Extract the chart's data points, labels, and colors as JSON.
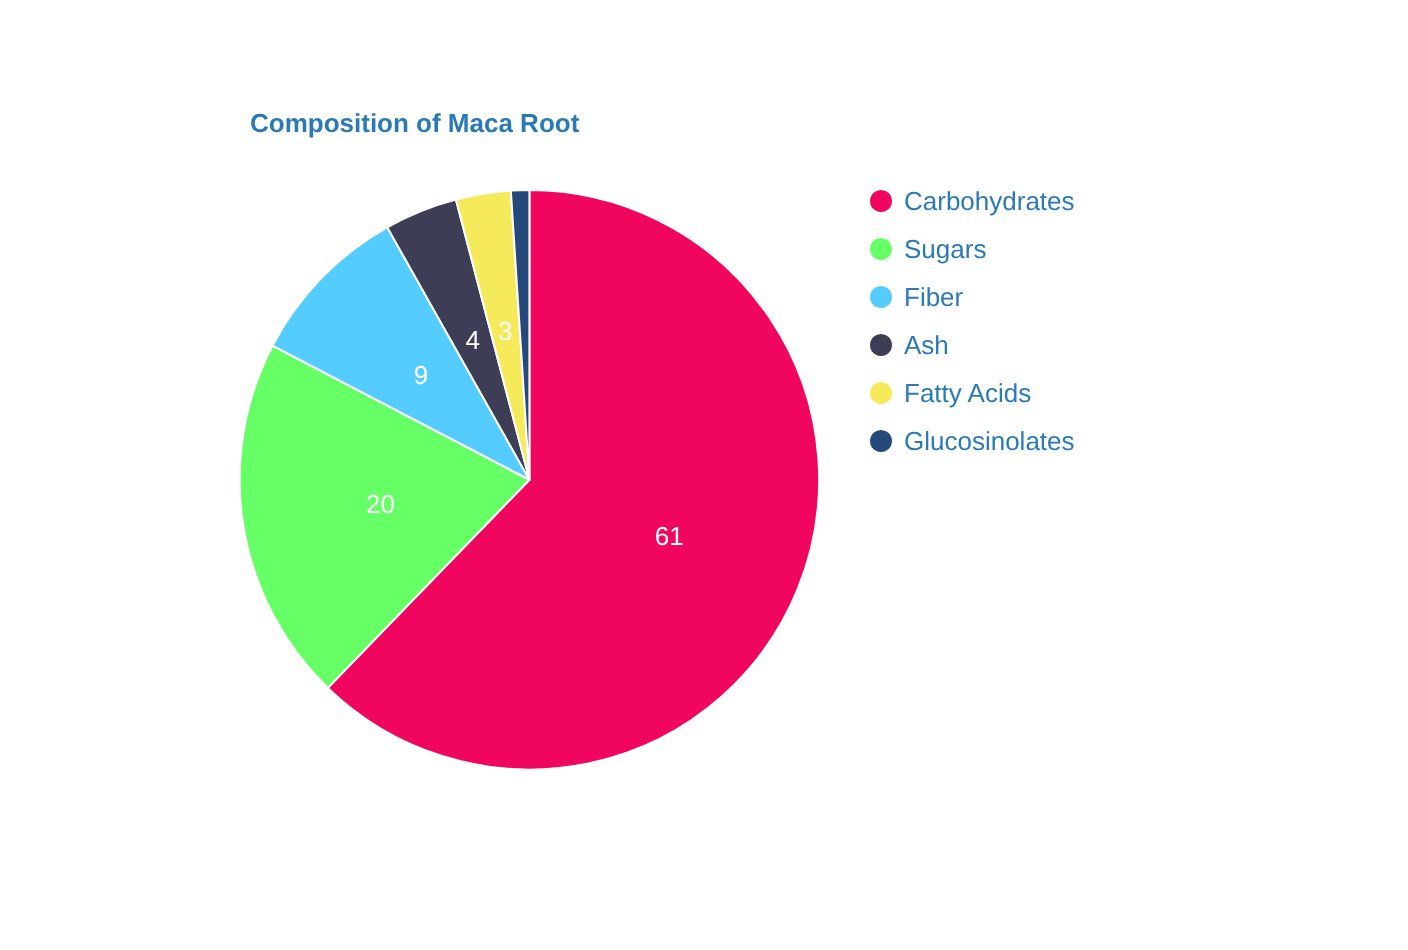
{
  "chart_data": {
    "type": "pie",
    "title": "Composition of Maca Root",
    "categories": [
      "Carbohydrates",
      "Sugars",
      "Fiber",
      "Ash",
      "Fatty Acids",
      "Glucosinolates"
    ],
    "values": [
      61,
      20,
      9,
      4,
      3,
      1
    ],
    "value_labels": [
      "61",
      "20",
      "9",
      "4",
      "3",
      null
    ],
    "colors": [
      "#f0055f",
      "#66ff66",
      "#55ccff",
      "#3d3d55",
      "#f5ea5a",
      "#24497a"
    ],
    "legend": "top right"
  }
}
